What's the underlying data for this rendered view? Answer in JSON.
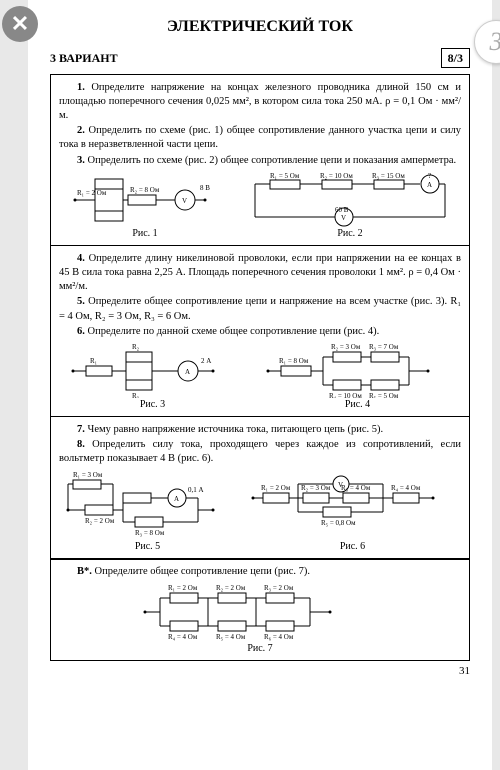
{
  "ui": {
    "close_glyph": "✕",
    "next_glyph": "3"
  },
  "title": "ЭЛЕКТРИЧЕСКИЙ ТОК",
  "variant": "3 ВАРИАНТ",
  "badge": "8/3",
  "page_number": "31",
  "blocks": [
    {
      "lines": [
        "<b>1.</b> Определите напряжение на концах железного проводника длиной 150 см и площадью поперечного сечения 0,025 мм², в котором сила тока 250 мА. ρ = 0,1 Ом · мм²/м.",
        "<b>2.</b> Определить по схеме (рис. 1) общее сопротивление данного участка цепи и силу тока в неразветвленной части цепи.",
        "<b>3.</b> Определить по схеме (рис. 2) общее сопротивление цепи и показания амперметра."
      ],
      "fig_labels": [
        "Рис. 1",
        "Рис. 2"
      ],
      "fig1": {
        "r1": "R₁ = 2 Ом",
        "r2": "R₂ = 8 Ом",
        "v": "8 В"
      },
      "fig2": {
        "r1": "R₁ = 5 Ом",
        "r2": "R₂ = 10 Ом",
        "r3": "R₃ = 15 Ом",
        "v": "60 В",
        "q": "?"
      }
    },
    {
      "lines": [
        "<b>4.</b> Определите длину никелиновой проволоки, если при напряжении на ее концах в 45 В сила тока равна 2,25 А. Площадь поперечного сечения проволоки 1 мм². ρ = 0,4 Ом · мм²/м.",
        "<b>5.</b> Определите общее сопротивление цепи и напряжение на всем участке (рис. 3). R₁ = 4 Ом, R₂ = 3 Ом, R₃ = 6 Ом.",
        "<b>6.</b> Определите по данной схеме общее сопротивление цепи (рис. 4)."
      ],
      "fig_labels": [
        "Рис. 3",
        "Рис. 4"
      ],
      "fig3": {
        "r1": "R₁",
        "r2": "R₂",
        "r3": "R₃",
        "a": "2 А"
      },
      "fig4": {
        "r1": "R₁ = 8 Ом",
        "r2": "R₂ = 3 Ом",
        "r3": "R₃ = 7 Ом",
        "r4": "R₄ = 10 Ом",
        "r5": "R₅ = 5 Ом"
      }
    },
    {
      "lines": [
        "<b>7.</b> Чему равно напряжение источника тока, питающего цепь (рис. 5).",
        "<b>8.</b> Определить силу тока, проходящего через каждое из сопротивлений, если вольтметр показывает 4 В (рис. 6)."
      ],
      "fig_labels": [
        "Рис. 5",
        "Рис. 6"
      ],
      "fig5": {
        "r1": "R₁ = 3 Ом",
        "r2": "R₂ = 2 Ом",
        "r3": "R₃ = 8 Ом",
        "a": "0,1 А"
      },
      "fig6": {
        "r1": "R₁ = 2 Ом",
        "r2": "R₂ = 3 Ом",
        "r3": "R₃ = 4 Ом",
        "r4": "R₄ = 4 Ом",
        "r5": "R₅ = 0,8 Ом"
      }
    },
    {
      "lines": [
        "<b>В*.</b> Определите общее сопротивление цепи (рис. 7)."
      ],
      "fig_labels": [
        "Рис. 7"
      ],
      "fig7": {
        "r1": "R₁ = 2 Ом",
        "r2": "R₂ = 2 Ом",
        "r3": "R₃ = 2 Ом",
        "r4": "R₄ = 4 Ом",
        "r5": "R₅ = 4 Ом",
        "r6": "R₆ = 4 Ом"
      }
    }
  ]
}
